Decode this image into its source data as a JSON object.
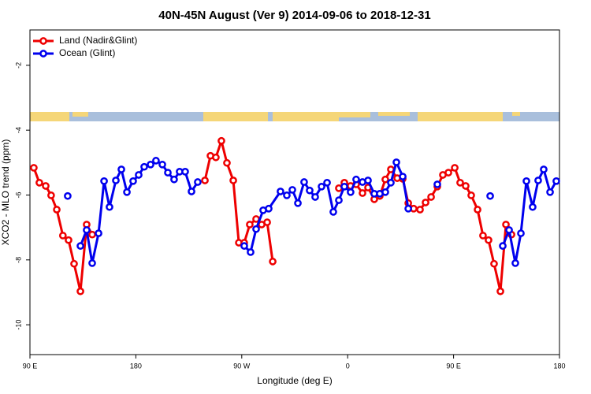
{
  "chart_data": {
    "type": "line",
    "title": "40N-45N August (Ver 9)   2014-09-06 to 2018-12-31",
    "xlabel": "Longitude (deg E)",
    "ylabel": "XCO2 - MLO trend (ppm)",
    "xlim": [
      90,
      540
    ],
    "ylim": [
      -10.92,
      -0.91
    ],
    "xticks": [
      {
        "value": 90,
        "label": "90 E"
      },
      180,
      {
        "value": 270,
        "label": "90 W"
      },
      {
        "value": 360,
        "label": "0"
      },
      {
        "value": 450,
        "label": "90 E"
      },
      {
        "value": 540,
        "label": "180"
      }
    ],
    "yticks": [
      -10,
      -8,
      -6,
      -4,
      -2
    ],
    "legend": "top-left",
    "series": [
      {
        "name": "Land (Nadir&Glint)",
        "color": "#ee0000",
        "x": [
          93.3,
          98,
          103.4,
          108,
          112.8,
          118,
          122.8,
          127.5,
          132.9,
          138.2,
          142.9,
          190,
          238.7,
          243.4,
          248,
          252.7,
          257.4,
          262.8,
          267.5,
          272.1,
          276.8,
          282.2,
          286.9,
          291.6,
          296.3,
          325,
          352.5,
          357.2,
          362.5,
          367.2,
          372.6,
          377.3,
          382.6,
          387.3,
          392,
          396.7,
          402.1,
          406.8,
          411.5,
          416.1,
          421.5,
          426.2,
          430.9,
          436.2,
          440.9,
          445.6,
          451,
          455.6,
          460.3,
          465,
          470.4,
          475,
          479.7,
          484.4,
          489.8,
          494.5,
          499.2
        ],
        "values": [
          -5.16,
          -5.62,
          -5.72,
          -6.01,
          -6.45,
          -7.25,
          -7.39,
          -8.12,
          -8.97,
          -6.91,
          -7.22,
          null,
          -5.55,
          -4.79,
          -4.84,
          -4.33,
          -5.01,
          -5.55,
          -7.47,
          -7.47,
          -6.91,
          -6.74,
          -6.91,
          -6.84,
          -8.05,
          null,
          -5.79,
          -5.62,
          -5.72,
          -5.67,
          -5.94,
          -5.77,
          -6.13,
          -6.03,
          -5.52,
          -5.21,
          -5.48,
          -5.5,
          -6.25,
          -6.42,
          -6.45,
          -6.23,
          -6.06,
          -5.74,
          -5.38,
          -5.31,
          -5.16,
          -5.62,
          -5.72,
          -6.01,
          -6.45,
          -7.25,
          -7.39,
          -8.12,
          -8.97,
          -6.91,
          -7.22
        ]
      },
      {
        "name": "Ocean (Glint)",
        "color": "#0000ee",
        "x": [
          122.1,
          127,
          132.9,
          138.2,
          142.9,
          148.3,
          153,
          157.6,
          163,
          167.7,
          172.4,
          177.7,
          182.4,
          187.1,
          192.5,
          197.1,
          202.5,
          207.2,
          212.5,
          217.2,
          221.9,
          227.3,
          232.6,
          250,
          272.1,
          277.5,
          282.2,
          288.2,
          292.9,
          302.9,
          308.3,
          313,
          317.7,
          323,
          327.7,
          332.4,
          337.8,
          342.5,
          347.8,
          352.5,
          357.2,
          362.5,
          367.2,
          372.6,
          377.3,
          382.6,
          387.3,
          392,
          396.7,
          401.4,
          406.8,
          411.5,
          425,
          436.2,
          460,
          481.1,
          486,
          491.8,
          497.2,
          502.5,
          507.2,
          511.9,
          517.2,
          521.9,
          526.6,
          532,
          537.3
        ],
        "values": [
          -6.03,
          null,
          -7.57,
          -7.08,
          -8.1,
          -7.18,
          -5.57,
          -6.37,
          -5.55,
          -5.21,
          -5.91,
          -5.57,
          -5.38,
          -5.13,
          -5.06,
          -4.94,
          -5.06,
          -5.31,
          -5.52,
          -5.28,
          -5.28,
          -5.89,
          -5.6,
          null,
          -7.57,
          -7.76,
          -7.05,
          -6.47,
          -6.42,
          -5.89,
          -6.01,
          -5.84,
          -6.25,
          -5.6,
          -5.86,
          -6.06,
          -5.74,
          -5.62,
          -6.52,
          -6.16,
          -5.74,
          -5.91,
          -5.52,
          -5.6,
          -5.55,
          -5.96,
          -5.96,
          -5.91,
          -5.62,
          -4.99,
          -5.43,
          -6.42,
          null,
          -5.67,
          null,
          -6.03,
          null,
          -7.57,
          -7.08,
          -8.1,
          -7.18,
          -5.57,
          -6.37,
          -5.55,
          -5.21,
          -5.91,
          -5.57
        ]
      }
    ]
  }
}
